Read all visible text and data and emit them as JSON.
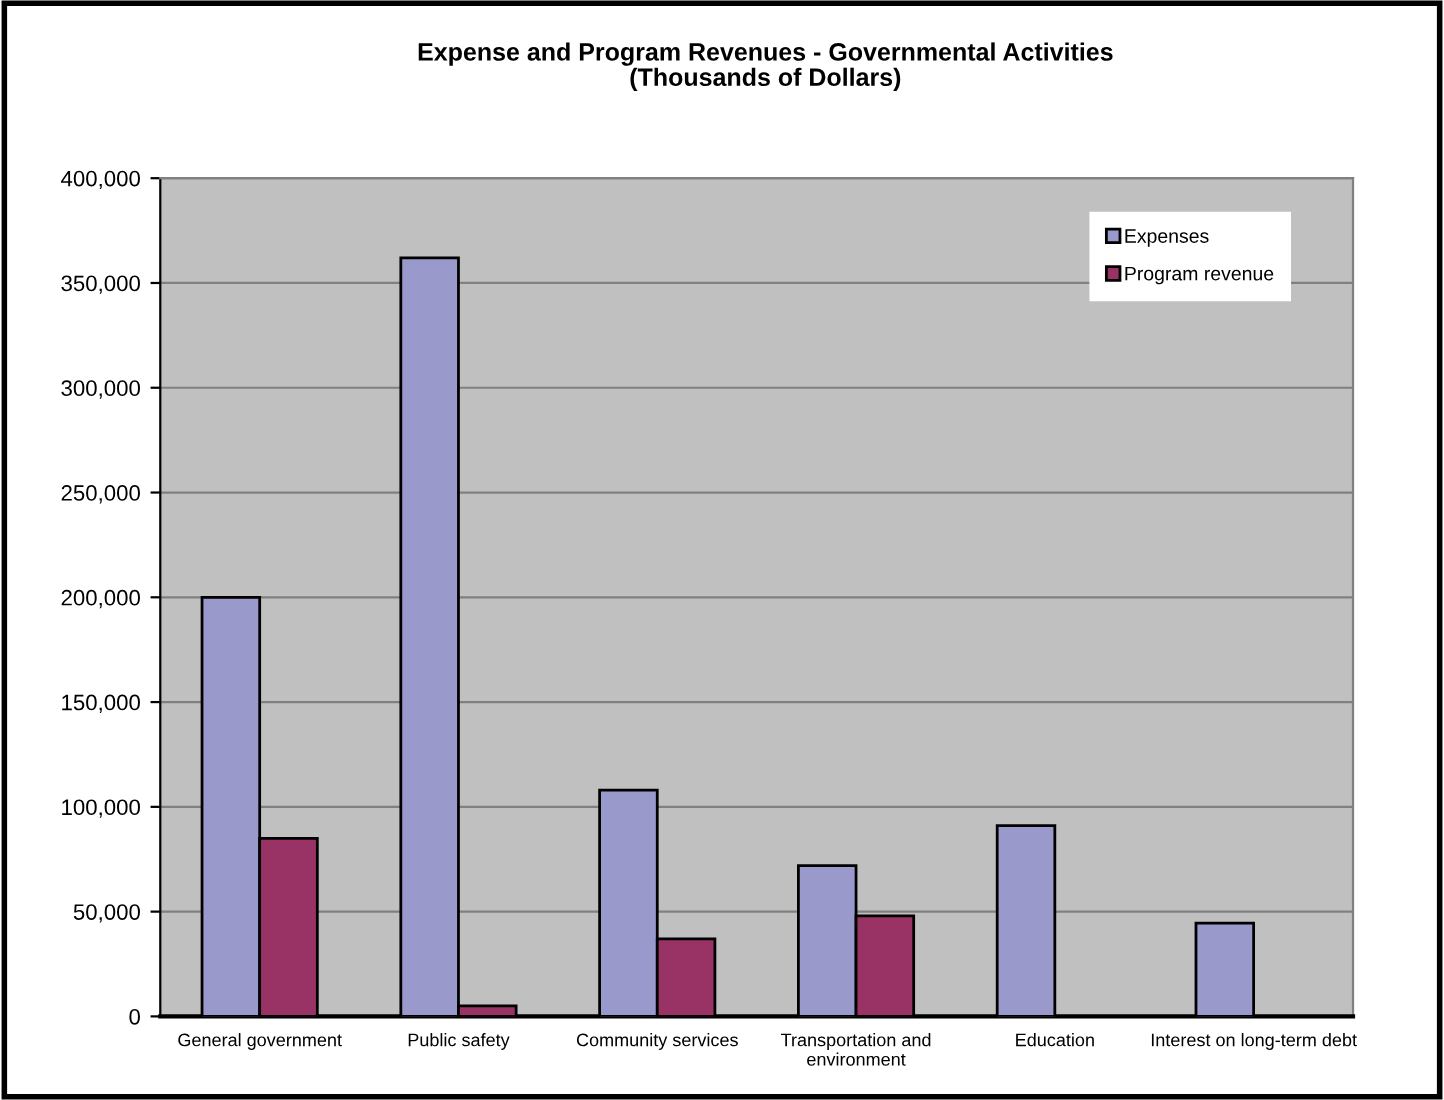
{
  "chart_data": {
    "type": "bar",
    "title": "Expense and Program Revenues - Governmental Activities",
    "subtitle": "(Thousands of Dollars)",
    "categories": [
      "General government",
      "Public safety",
      "Community services",
      "Transportation and\nenvironment",
      "Education",
      "Interest on long-term debt"
    ],
    "series": [
      {
        "name": "Expenses",
        "color": "#9999cc",
        "values": [
          200000,
          362000,
          108000,
          72000,
          91000,
          44500
        ]
      },
      {
        "name": "Program revenue",
        "color": "#993366",
        "values": [
          85000,
          5000,
          37000,
          48000,
          null,
          null
        ]
      }
    ],
    "ylim": [
      0,
      400000
    ],
    "yticks": [
      {
        "value": 0,
        "label": "0"
      },
      {
        "value": 50000,
        "label": "50,000"
      },
      {
        "value": 100000,
        "label": "100,000"
      },
      {
        "value": 150000,
        "label": "150,000"
      },
      {
        "value": 200000,
        "label": "200,000"
      },
      {
        "value": 250000,
        "label": "250,000"
      },
      {
        "value": 300000,
        "label": "300,000"
      },
      {
        "value": 350000,
        "label": "350,000"
      },
      {
        "value": 400000,
        "label": "400,000"
      }
    ],
    "grid": "y",
    "legend": "top right"
  }
}
